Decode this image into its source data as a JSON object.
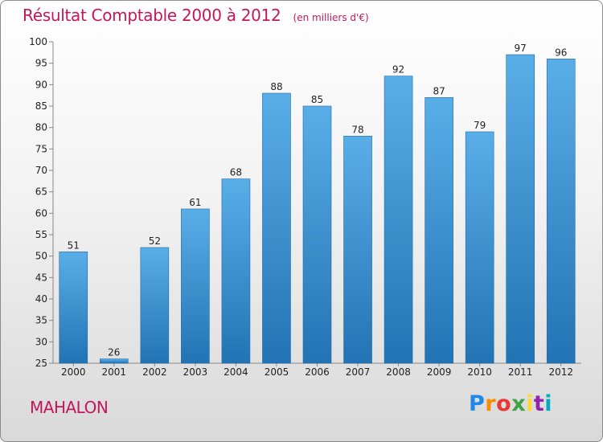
{
  "header": {
    "title": "Résultat Comptable 2000 à 2012",
    "subtitle": "(en milliers d'€)"
  },
  "footer": {
    "commune": "MAHALON",
    "logo_text": "Proxiti",
    "logo_colors": [
      "#1e88e5",
      "#fb8c00",
      "#e53935",
      "#43a047",
      "#fdd835",
      "#8e24aa",
      "#00acc1"
    ]
  },
  "colors": {
    "accent": "#c2185b",
    "bar_top": "#5aaee8",
    "bar_bottom": "#2273b3"
  },
  "chart_data": {
    "type": "bar",
    "categories": [
      "2000",
      "2001",
      "2002",
      "2003",
      "2004",
      "2005",
      "2006",
      "2007",
      "2008",
      "2009",
      "2010",
      "2011",
      "2012"
    ],
    "values": [
      51,
      26,
      52,
      61,
      68,
      88,
      85,
      78,
      92,
      87,
      79,
      97,
      96
    ],
    "ylim": [
      25,
      100
    ],
    "yticks": [
      25,
      30,
      35,
      40,
      45,
      50,
      55,
      60,
      65,
      70,
      75,
      80,
      85,
      90,
      95,
      100
    ],
    "grid": false,
    "data_labels": true
  }
}
